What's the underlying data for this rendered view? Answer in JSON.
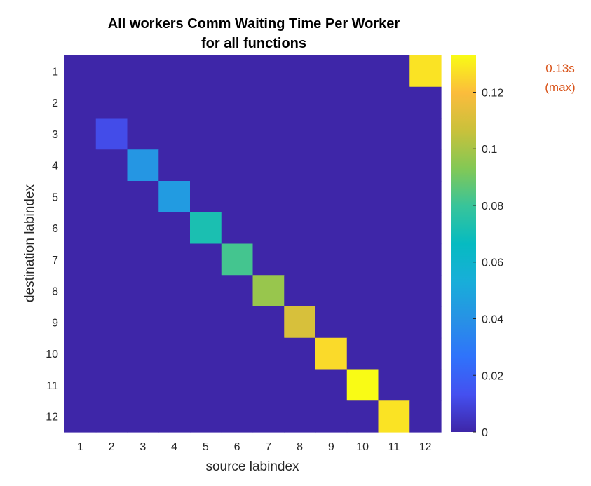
{
  "chart_data": {
    "type": "heatmap",
    "title_lines": [
      "All workers Comm Waiting Time Per Worker",
      "for all functions"
    ],
    "xlabel": "source labindex",
    "ylabel": "destination labindex",
    "x_categories": [
      "1",
      "2",
      "3",
      "4",
      "5",
      "6",
      "7",
      "8",
      "9",
      "10",
      "11",
      "12"
    ],
    "y_categories": [
      "1",
      "2",
      "3",
      "4",
      "5",
      "6",
      "7",
      "8",
      "9",
      "10",
      "11",
      "12"
    ],
    "values": [
      [
        0,
        0,
        0,
        0,
        0,
        0,
        0,
        0,
        0,
        0,
        0,
        0.128
      ],
      [
        0,
        0,
        0,
        0,
        0,
        0,
        0,
        0,
        0,
        0,
        0,
        0
      ],
      [
        0,
        0.012,
        0,
        0,
        0,
        0,
        0,
        0,
        0,
        0,
        0,
        0
      ],
      [
        0,
        0,
        0.042,
        0,
        0,
        0,
        0,
        0,
        0,
        0,
        0,
        0
      ],
      [
        0,
        0,
        0,
        0.044,
        0,
        0,
        0,
        0,
        0,
        0,
        0,
        0
      ],
      [
        0,
        0,
        0,
        0,
        0.072,
        0,
        0,
        0,
        0,
        0,
        0,
        0
      ],
      [
        0,
        0,
        0,
        0,
        0,
        0.082,
        0,
        0,
        0,
        0,
        0,
        0
      ],
      [
        0,
        0,
        0,
        0,
        0,
        0,
        0.097,
        0,
        0,
        0,
        0,
        0
      ],
      [
        0,
        0,
        0,
        0,
        0,
        0,
        0,
        0.11,
        0,
        0,
        0,
        0
      ],
      [
        0,
        0,
        0,
        0,
        0,
        0,
        0,
        0,
        0.126,
        0,
        0,
        0
      ],
      [
        0,
        0,
        0,
        0,
        0,
        0,
        0,
        0,
        0,
        0.133,
        0,
        0
      ],
      [
        0,
        0,
        0,
        0,
        0,
        0,
        0,
        0,
        0,
        0,
        0.128,
        0
      ]
    ],
    "colorbar": {
      "range": [
        0,
        0.133
      ],
      "ticks": [
        0,
        0.02,
        0.04,
        0.06,
        0.08,
        0.1,
        0.12
      ],
      "tick_labels": [
        "0",
        "0.02",
        "0.04",
        "0.06",
        "0.08",
        "0.1",
        "0.12"
      ],
      "colormap": "parula"
    },
    "annotation": {
      "lines": [
        "0.13s",
        "(max)"
      ],
      "color": "#d95319"
    }
  }
}
